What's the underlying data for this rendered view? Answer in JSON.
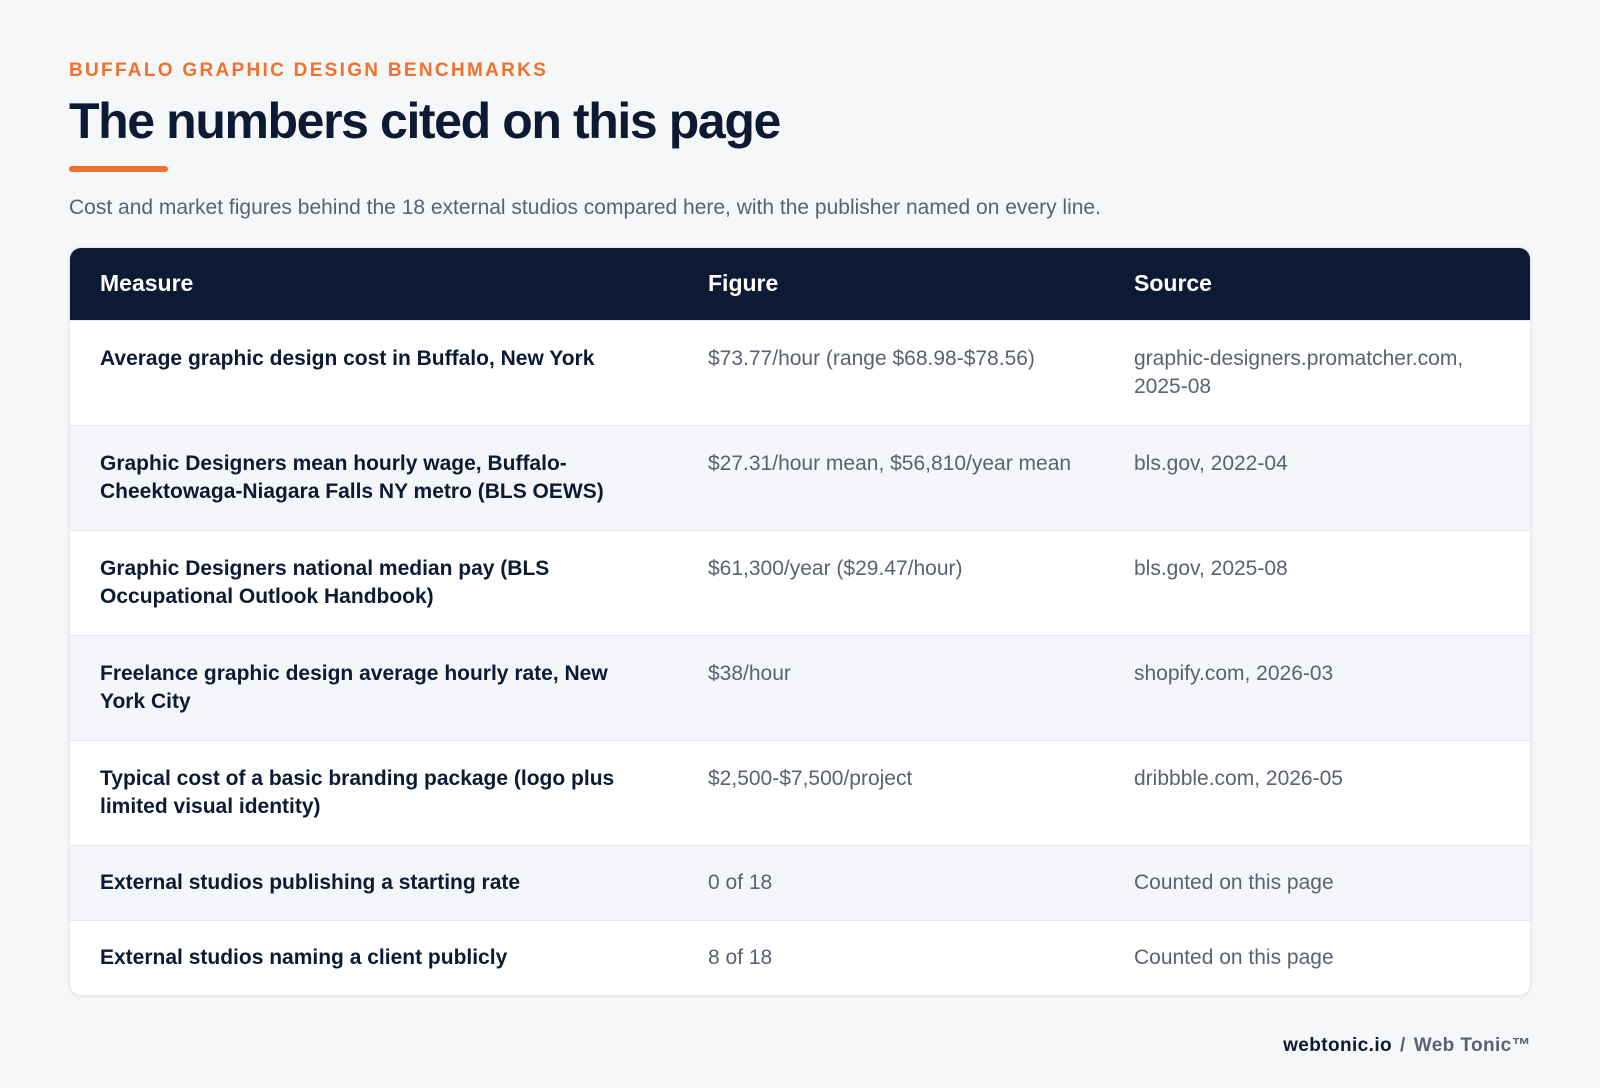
{
  "header": {
    "eyebrow": "BUFFALO GRAPHIC DESIGN BENCHMARKS",
    "title": "The numbers cited on this page",
    "subtitle": "Cost and market figures behind the 18 external studios compared here, with the publisher named on every line."
  },
  "table": {
    "columns": [
      "Measure",
      "Figure",
      "Source"
    ],
    "rows": [
      {
        "measure": "Average graphic design cost in Buffalo, New York",
        "figure": "$73.77/hour (range $68.98-$78.56)",
        "source": "graphic-designers.promatcher.com, 2025-08"
      },
      {
        "measure": "Graphic Designers mean hourly wage, Buffalo-Cheektowaga-Niagara Falls NY metro (BLS OEWS)",
        "figure": "$27.31/hour mean, $56,810/year mean",
        "source": "bls.gov, 2022-04"
      },
      {
        "measure": "Graphic Designers national median pay (BLS Occupational Outlook Handbook)",
        "figure": "$61,300/year ($29.47/hour)",
        "source": "bls.gov, 2025-08"
      },
      {
        "measure": "Freelance graphic design average hourly rate, New York City",
        "figure": "$38/hour",
        "source": "shopify.com, 2026-03"
      },
      {
        "measure": "Typical cost of a basic branding package (logo plus limited visual identity)",
        "figure": "$2,500-$7,500/project",
        "source": "dribbble.com, 2026-05"
      },
      {
        "measure": "External studios publishing a starting rate",
        "figure": "0 of 18",
        "source": "Counted on this page"
      },
      {
        "measure": "External studios naming a client publicly",
        "figure": "8 of 18",
        "source": "Counted on this page"
      }
    ]
  },
  "footer": {
    "domain": "webtonic.io",
    "separator": "/",
    "brand": "Web Tonic™"
  },
  "colors": {
    "accent": "#f26f2c",
    "navy": "#0c1a33",
    "muted_text": "#5a6272",
    "background": "#f6f7f9"
  }
}
